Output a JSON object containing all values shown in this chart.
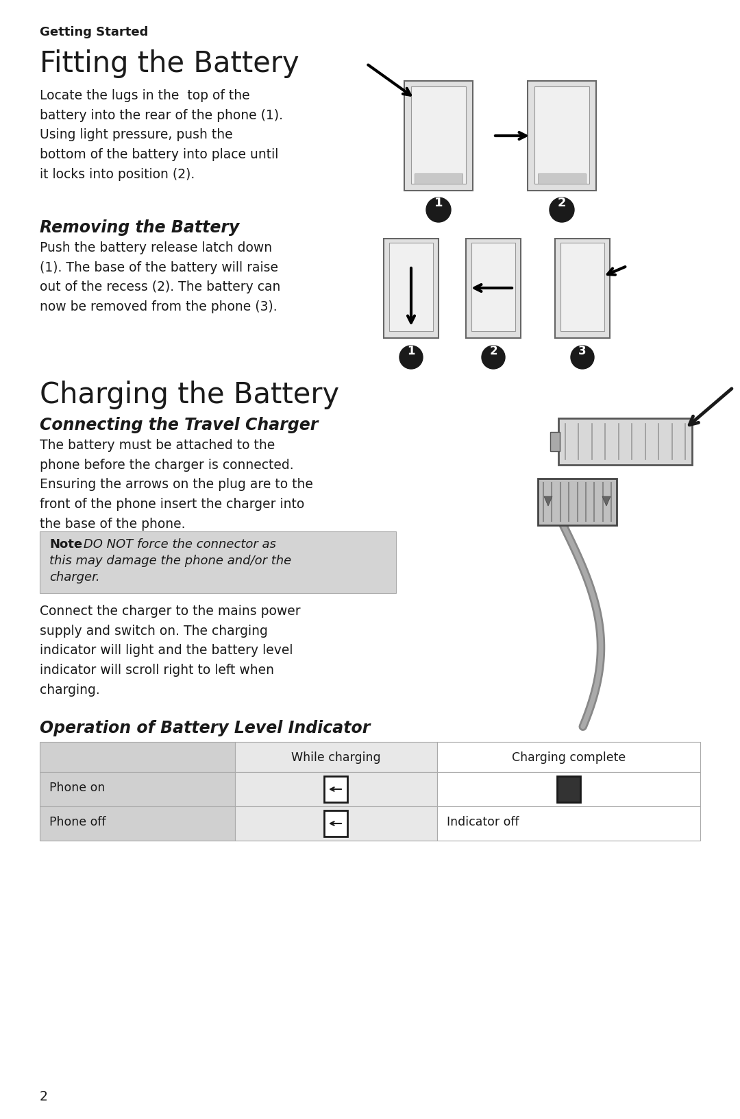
{
  "bg_color": "#ffffff",
  "getting_started_text": "Getting Started",
  "fitting_title": "Fitting the Battery",
  "fitting_body": "Locate the lugs in the  top of the\nbattery into the rear of the phone (1).\nUsing light pressure, push the\nbottom of the battery into place until\nit locks into position (2).",
  "removing_title": "Removing the Battery",
  "removing_body": "Push the battery release latch down\n(1). The base of the battery will raise\nout of the recess (2). The battery can\nnow be removed from the phone (3).",
  "charging_title": "Charging the Battery",
  "connecting_title": "Connecting the Travel Charger",
  "connecting_body1": "The battery must be attached to the\nphone before the charger is connected.\nEnsuring the arrows on the plug are to the\nfront of the phone insert the charger into\nthe base of the phone.",
  "note_bold": "Note",
  "note_italic": ": DO NOT force the connector as\nthis may damage the phone and/or the\ncharger.",
  "connecting_body2": "Connect the charger to the mains power\nsupply and switch on. The charging\nindicator will light and the battery level\nindicator will scroll right to left when\ncharging.",
  "operation_title": "Operation of Battery Level Indicator",
  "table_header_col2": "While charging",
  "table_header_col3": "Charging complete",
  "table_row1_col1": "Phone on",
  "table_row2_col1": "Phone off",
  "table_row2_col3": "Indicator off",
  "footer_text": "2",
  "note_bg_color": "#d4d4d4",
  "table_col1_bg": "#d0d0d0",
  "table_col2_bg": "#e8e8e8",
  "table_col3_bg": "#ffffff",
  "text_color": "#1a1a1a",
  "body_fontsize": 13.5,
  "title_fontsize": 30,
  "subtitle_fontsize": 17,
  "getting_started_fontsize": 13
}
